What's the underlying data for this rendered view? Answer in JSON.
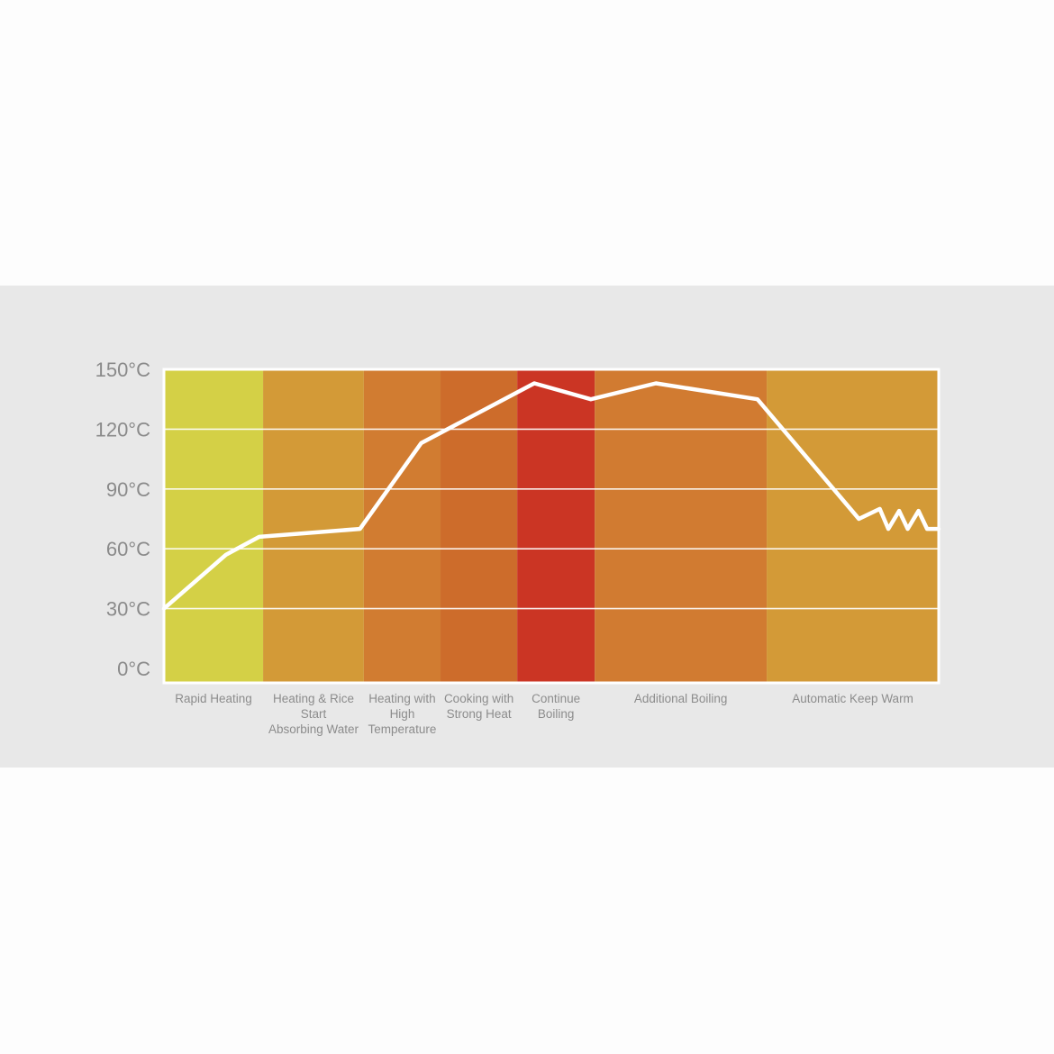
{
  "chart_data": {
    "type": "line",
    "title": "",
    "xlabel": "",
    "ylabel": "",
    "ylim": [
      0,
      150
    ],
    "yticks": [
      "0°C",
      "30°C",
      "60°C",
      "90°C",
      "120°C",
      "150°C"
    ],
    "ytick_values": [
      0,
      30,
      60,
      90,
      120,
      150
    ],
    "grid": true,
    "phases": [
      {
        "name": "rapid-heating",
        "label": [
          "Rapid Heating"
        ],
        "start": 0,
        "end": 12.8,
        "color": "#d4d046"
      },
      {
        "name": "absorbing-water",
        "label": [
          "Heating & Rice",
          "Start",
          "Absorbing Water"
        ],
        "start": 12.8,
        "end": 25.8,
        "color": "#d39a37"
      },
      {
        "name": "high-temperature",
        "label": [
          "Heating with",
          "High",
          "Temperature"
        ],
        "start": 25.8,
        "end": 35.7,
        "color": "#d17c31"
      },
      {
        "name": "strong-heat",
        "label": [
          "Cooking with",
          "Strong Heat"
        ],
        "start": 35.7,
        "end": 45.6,
        "color": "#cd6c2b"
      },
      {
        "name": "continue-boiling",
        "label": [
          "Continue",
          "Boiling"
        ],
        "start": 45.6,
        "end": 55.6,
        "color": "#cb3524"
      },
      {
        "name": "additional-boiling",
        "label": [
          "Additional Boiling"
        ],
        "start": 55.6,
        "end": 77.8,
        "color": "#d17b31"
      },
      {
        "name": "keep-warm",
        "label": [
          "Automatic Keep Warm"
        ],
        "start": 77.8,
        "end": 100,
        "color": "#d39a37"
      }
    ],
    "xlim": [
      0,
      100
    ],
    "series": [
      {
        "values": [
          [
            0,
            30
          ],
          [
            8,
            57
          ],
          [
            12.3,
            66
          ],
          [
            25.3,
            70
          ],
          [
            33.2,
            113
          ],
          [
            47.8,
            143
          ],
          [
            55.1,
            135
          ],
          [
            63.5,
            143
          ],
          [
            76.6,
            135
          ],
          [
            89.7,
            75
          ],
          [
            92.4,
            80
          ],
          [
            93.5,
            70
          ],
          [
            94.9,
            79
          ],
          [
            96,
            70
          ],
          [
            97.4,
            79
          ],
          [
            98.5,
            70
          ],
          [
            100,
            70
          ]
        ],
        "color": "#ffffff"
      }
    ]
  }
}
